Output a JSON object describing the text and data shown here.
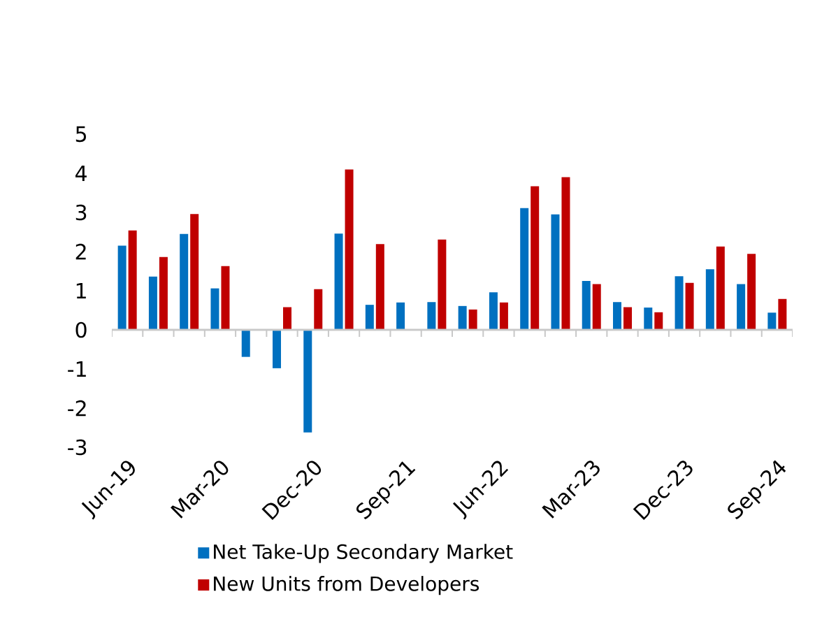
{
  "chart_data": {
    "type": "bar",
    "categories": [
      "Jun-19",
      null,
      null,
      "Mar-20",
      null,
      null,
      "Dec-20",
      null,
      null,
      "Sep-21",
      null,
      null,
      "Jun-22",
      null,
      null,
      "Mar-23",
      null,
      null,
      "Dec-23",
      null,
      null,
      "Sep-24"
    ],
    "series": [
      {
        "name": "Net Take-Up Secondary Market",
        "color": "#0070c0",
        "values": [
          2.15,
          1.36,
          2.45,
          1.06,
          -0.69,
          -0.98,
          -2.62,
          2.46,
          0.64,
          0.7,
          0.71,
          0.61,
          0.96,
          3.11,
          2.95,
          1.25,
          0.71,
          0.57,
          1.37,
          1.55,
          1.17,
          0.44
        ]
      },
      {
        "name": "New Units from Developers",
        "color": "#c00000",
        "values": [
          2.54,
          1.86,
          2.96,
          1.63,
          null,
          0.58,
          1.04,
          4.1,
          2.19,
          null,
          2.31,
          0.52,
          0.7,
          3.67,
          3.9,
          1.17,
          0.58,
          0.45,
          1.2,
          2.13,
          1.94,
          0.79
        ]
      }
    ],
    "ylim": [
      -3,
      5
    ],
    "yticks": [
      -3,
      -2,
      -1,
      0,
      1,
      2,
      3,
      4,
      5
    ],
    "legend": "bottom"
  }
}
